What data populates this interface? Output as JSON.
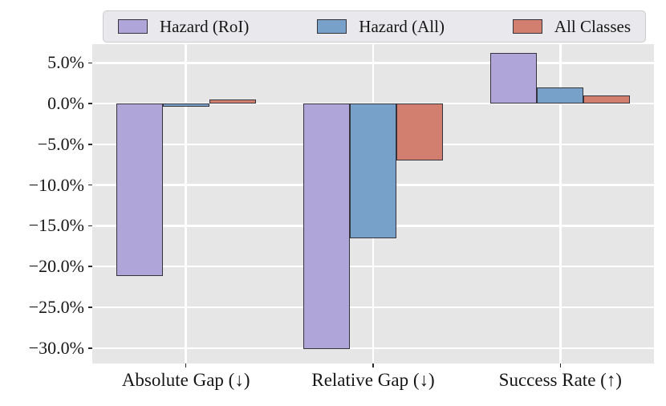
{
  "figure": {
    "background": "#ffffff",
    "plot_background": "#e6e6e6",
    "grid_color": "#ffffff",
    "text_color": "#161616",
    "tick_color": "#2a2a2a",
    "bar_edge_color": "#35333c",
    "legend_background": "#e9e8ec",
    "legend_border": "#cccccc"
  },
  "legend": {
    "items": [
      {
        "label": "Hazard (RoI)",
        "color": "#b0a5d8"
      },
      {
        "label": "Hazard (All)",
        "color": "#78a1c9"
      },
      {
        "label": "All Classes",
        "color": "#d37f70"
      }
    ]
  },
  "chart_data": {
    "type": "bar",
    "categories": [
      "Absolute Gap (↓)",
      "Relative Gap (↓)",
      "Success Rate (↑)"
    ],
    "series": [
      {
        "name": "Hazard (RoI)",
        "color": "#b0a5d8",
        "values": [
          -21.2,
          -30.1,
          6.2
        ]
      },
      {
        "name": "Hazard (All)",
        "color": "#78a1c9",
        "values": [
          -0.4,
          -16.5,
          2.0
        ]
      },
      {
        "name": "All Classes",
        "color": "#d37f70",
        "values": [
          0.5,
          -7.0,
          1.0
        ]
      }
    ],
    "y_ticks": [
      {
        "label": "5.0%",
        "value": 5
      },
      {
        "label": "0.0%",
        "value": 0
      },
      {
        "label": "−5.0%",
        "value": -5
      },
      {
        "label": "−10.0%",
        "value": -10
      },
      {
        "label": "−15.0%",
        "value": -15
      },
      {
        "label": "−20.0%",
        "value": -20
      },
      {
        "label": "−25.0%",
        "value": -25
      },
      {
        "label": "−30.0%",
        "value": -30
      }
    ],
    "ylim": [
      -31.9,
      7.3
    ],
    "grid": true,
    "legend_position": "top",
    "value_unit": "percent",
    "title": "",
    "xlabel": "",
    "ylabel": ""
  }
}
